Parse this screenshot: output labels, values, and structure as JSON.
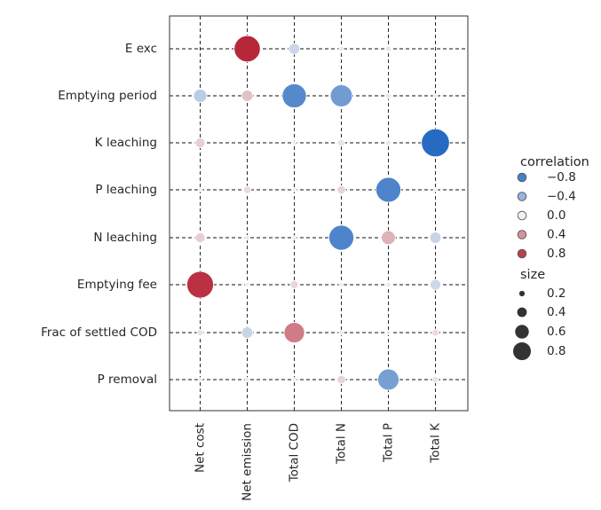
{
  "chart_data": {
    "type": "scatter",
    "title": "",
    "xlabel": "",
    "ylabel": "",
    "x_categories": [
      "Net cost",
      "Net emission",
      "Total COD",
      "Total N",
      "Total P",
      "Total K"
    ],
    "y_categories": [
      "E exc",
      "Emptying period",
      "K leaching",
      "P leaching",
      "N leaching",
      "Emptying fee",
      "Frac of settled COD",
      "P removal"
    ],
    "grid": true,
    "points": [
      {
        "x": "Net emission",
        "y": "E exc",
        "correlation": 0.92,
        "size": 0.85
      },
      {
        "x": "Total COD",
        "y": "E exc",
        "correlation": -0.15,
        "size": 0.15
      },
      {
        "x": "Total N",
        "y": "E exc",
        "correlation": -0.03,
        "size": 0.03
      },
      {
        "x": "Total P",
        "y": "E exc",
        "correlation": -0.04,
        "size": 0.04
      },
      {
        "x": "Net cost",
        "y": "Emptying period",
        "correlation": -0.22,
        "size": 0.22
      },
      {
        "x": "Net emission",
        "y": "Emptying period",
        "correlation": 0.18,
        "size": 0.16
      },
      {
        "x": "Total COD",
        "y": "Emptying period",
        "correlation": -0.72,
        "size": 0.72
      },
      {
        "x": "Total N",
        "y": "Emptying period",
        "correlation": -0.58,
        "size": 0.6
      },
      {
        "x": "Total P",
        "y": "Emptying period",
        "correlation": -0.04,
        "size": 0.04
      },
      {
        "x": "Total K",
        "y": "Emptying period",
        "correlation": -0.02,
        "size": 0.02
      },
      {
        "x": "Net cost",
        "y": "K leaching",
        "correlation": 0.12,
        "size": 0.12
      },
      {
        "x": "Total COD",
        "y": "K leaching",
        "correlation": 0.02,
        "size": 0.02
      },
      {
        "x": "Total N",
        "y": "K leaching",
        "correlation": 0.05,
        "size": 0.06
      },
      {
        "x": "Total P",
        "y": "K leaching",
        "correlation": -0.03,
        "size": 0.04
      },
      {
        "x": "Total K",
        "y": "K leaching",
        "correlation": -0.97,
        "size": 0.97
      },
      {
        "x": "Net cost",
        "y": "P leaching",
        "correlation": -0.01,
        "size": 0.01
      },
      {
        "x": "Net emission",
        "y": "P leaching",
        "correlation": 0.07,
        "size": 0.07
      },
      {
        "x": "Total COD",
        "y": "P leaching",
        "correlation": 0.01,
        "size": 0.01
      },
      {
        "x": "Total N",
        "y": "P leaching",
        "correlation": 0.1,
        "size": 0.09
      },
      {
        "x": "Total P",
        "y": "P leaching",
        "correlation": -0.76,
        "size": 0.77
      },
      {
        "x": "Total K",
        "y": "P leaching",
        "correlation": -0.01,
        "size": 0.01
      },
      {
        "x": "Net cost",
        "y": "N leaching",
        "correlation": 0.13,
        "size": 0.12
      },
      {
        "x": "Net emission",
        "y": "N leaching",
        "correlation": 0.03,
        "size": 0.03
      },
      {
        "x": "Total COD",
        "y": "N leaching",
        "correlation": 0.02,
        "size": 0.02
      },
      {
        "x": "Total N",
        "y": "N leaching",
        "correlation": -0.76,
        "size": 0.77
      },
      {
        "x": "Total P",
        "y": "N leaching",
        "correlation": 0.25,
        "size": 0.24
      },
      {
        "x": "Total K",
        "y": "N leaching",
        "correlation": -0.16,
        "size": 0.16
      },
      {
        "x": "Net cost",
        "y": "Emptying fee",
        "correlation": 0.87,
        "size": 0.88
      },
      {
        "x": "Net emission",
        "y": "Emptying fee",
        "correlation": 0.01,
        "size": 0.01
      },
      {
        "x": "Total COD",
        "y": "Emptying fee",
        "correlation": 0.09,
        "size": 0.08
      },
      {
        "x": "Total N",
        "y": "Emptying fee",
        "correlation": 0.01,
        "size": 0.01
      },
      {
        "x": "Total P",
        "y": "Emptying fee",
        "correlation": -0.03,
        "size": 0.03
      },
      {
        "x": "Total K",
        "y": "Emptying fee",
        "correlation": -0.14,
        "size": 0.14
      },
      {
        "x": "Net cost",
        "y": "Frac of settled COD",
        "correlation": 0.05,
        "size": 0.05
      },
      {
        "x": "Net emission",
        "y": "Frac of settled COD",
        "correlation": -0.16,
        "size": 0.16
      },
      {
        "x": "Total COD",
        "y": "Frac of settled COD",
        "correlation": 0.5,
        "size": 0.52
      },
      {
        "x": "Total N",
        "y": "Frac of settled COD",
        "correlation": -0.03,
        "size": 0.03
      },
      {
        "x": "Total P",
        "y": "Frac of settled COD",
        "correlation": -0.02,
        "size": 0.02
      },
      {
        "x": "Total K",
        "y": "Frac of settled COD",
        "correlation": 0.07,
        "size": 0.06
      },
      {
        "x": "Net cost",
        "y": "P removal",
        "correlation": -0.02,
        "size": 0.02
      },
      {
        "x": "Net emission",
        "y": "P removal",
        "correlation": -0.02,
        "size": 0.02
      },
      {
        "x": "Total COD",
        "y": "P removal",
        "correlation": 0.01,
        "size": 0.01
      },
      {
        "x": "Total N",
        "y": "P removal",
        "correlation": 0.1,
        "size": 0.09
      },
      {
        "x": "Total P",
        "y": "P removal",
        "correlation": -0.55,
        "size": 0.56
      },
      {
        "x": "Total K",
        "y": "P removal",
        "correlation": -0.05,
        "size": 0.05
      }
    ],
    "legend": {
      "placement": "right",
      "color_title": "correlation",
      "color_entries": [
        {
          "label": "−0.8",
          "value": -0.8
        },
        {
          "label": "−0.4",
          "value": -0.4
        },
        {
          "label": "0.0",
          "value": 0.0
        },
        {
          "label": "0.4",
          "value": 0.4
        },
        {
          "label": "0.8",
          "value": 0.8
        }
      ],
      "size_title": "size",
      "size_entries": [
        {
          "label": "0.2",
          "value": 0.2
        },
        {
          "label": "0.4",
          "value": 0.4
        },
        {
          "label": "0.6",
          "value": 0.6
        },
        {
          "label": "0.8",
          "value": 0.8
        }
      ]
    },
    "colors": {
      "negative": "#2166c0",
      "neutral": "#f0f0f0",
      "positive": "#b2182b",
      "grid": "#111111",
      "frame": "#333333",
      "size_marker": "#333333"
    }
  }
}
